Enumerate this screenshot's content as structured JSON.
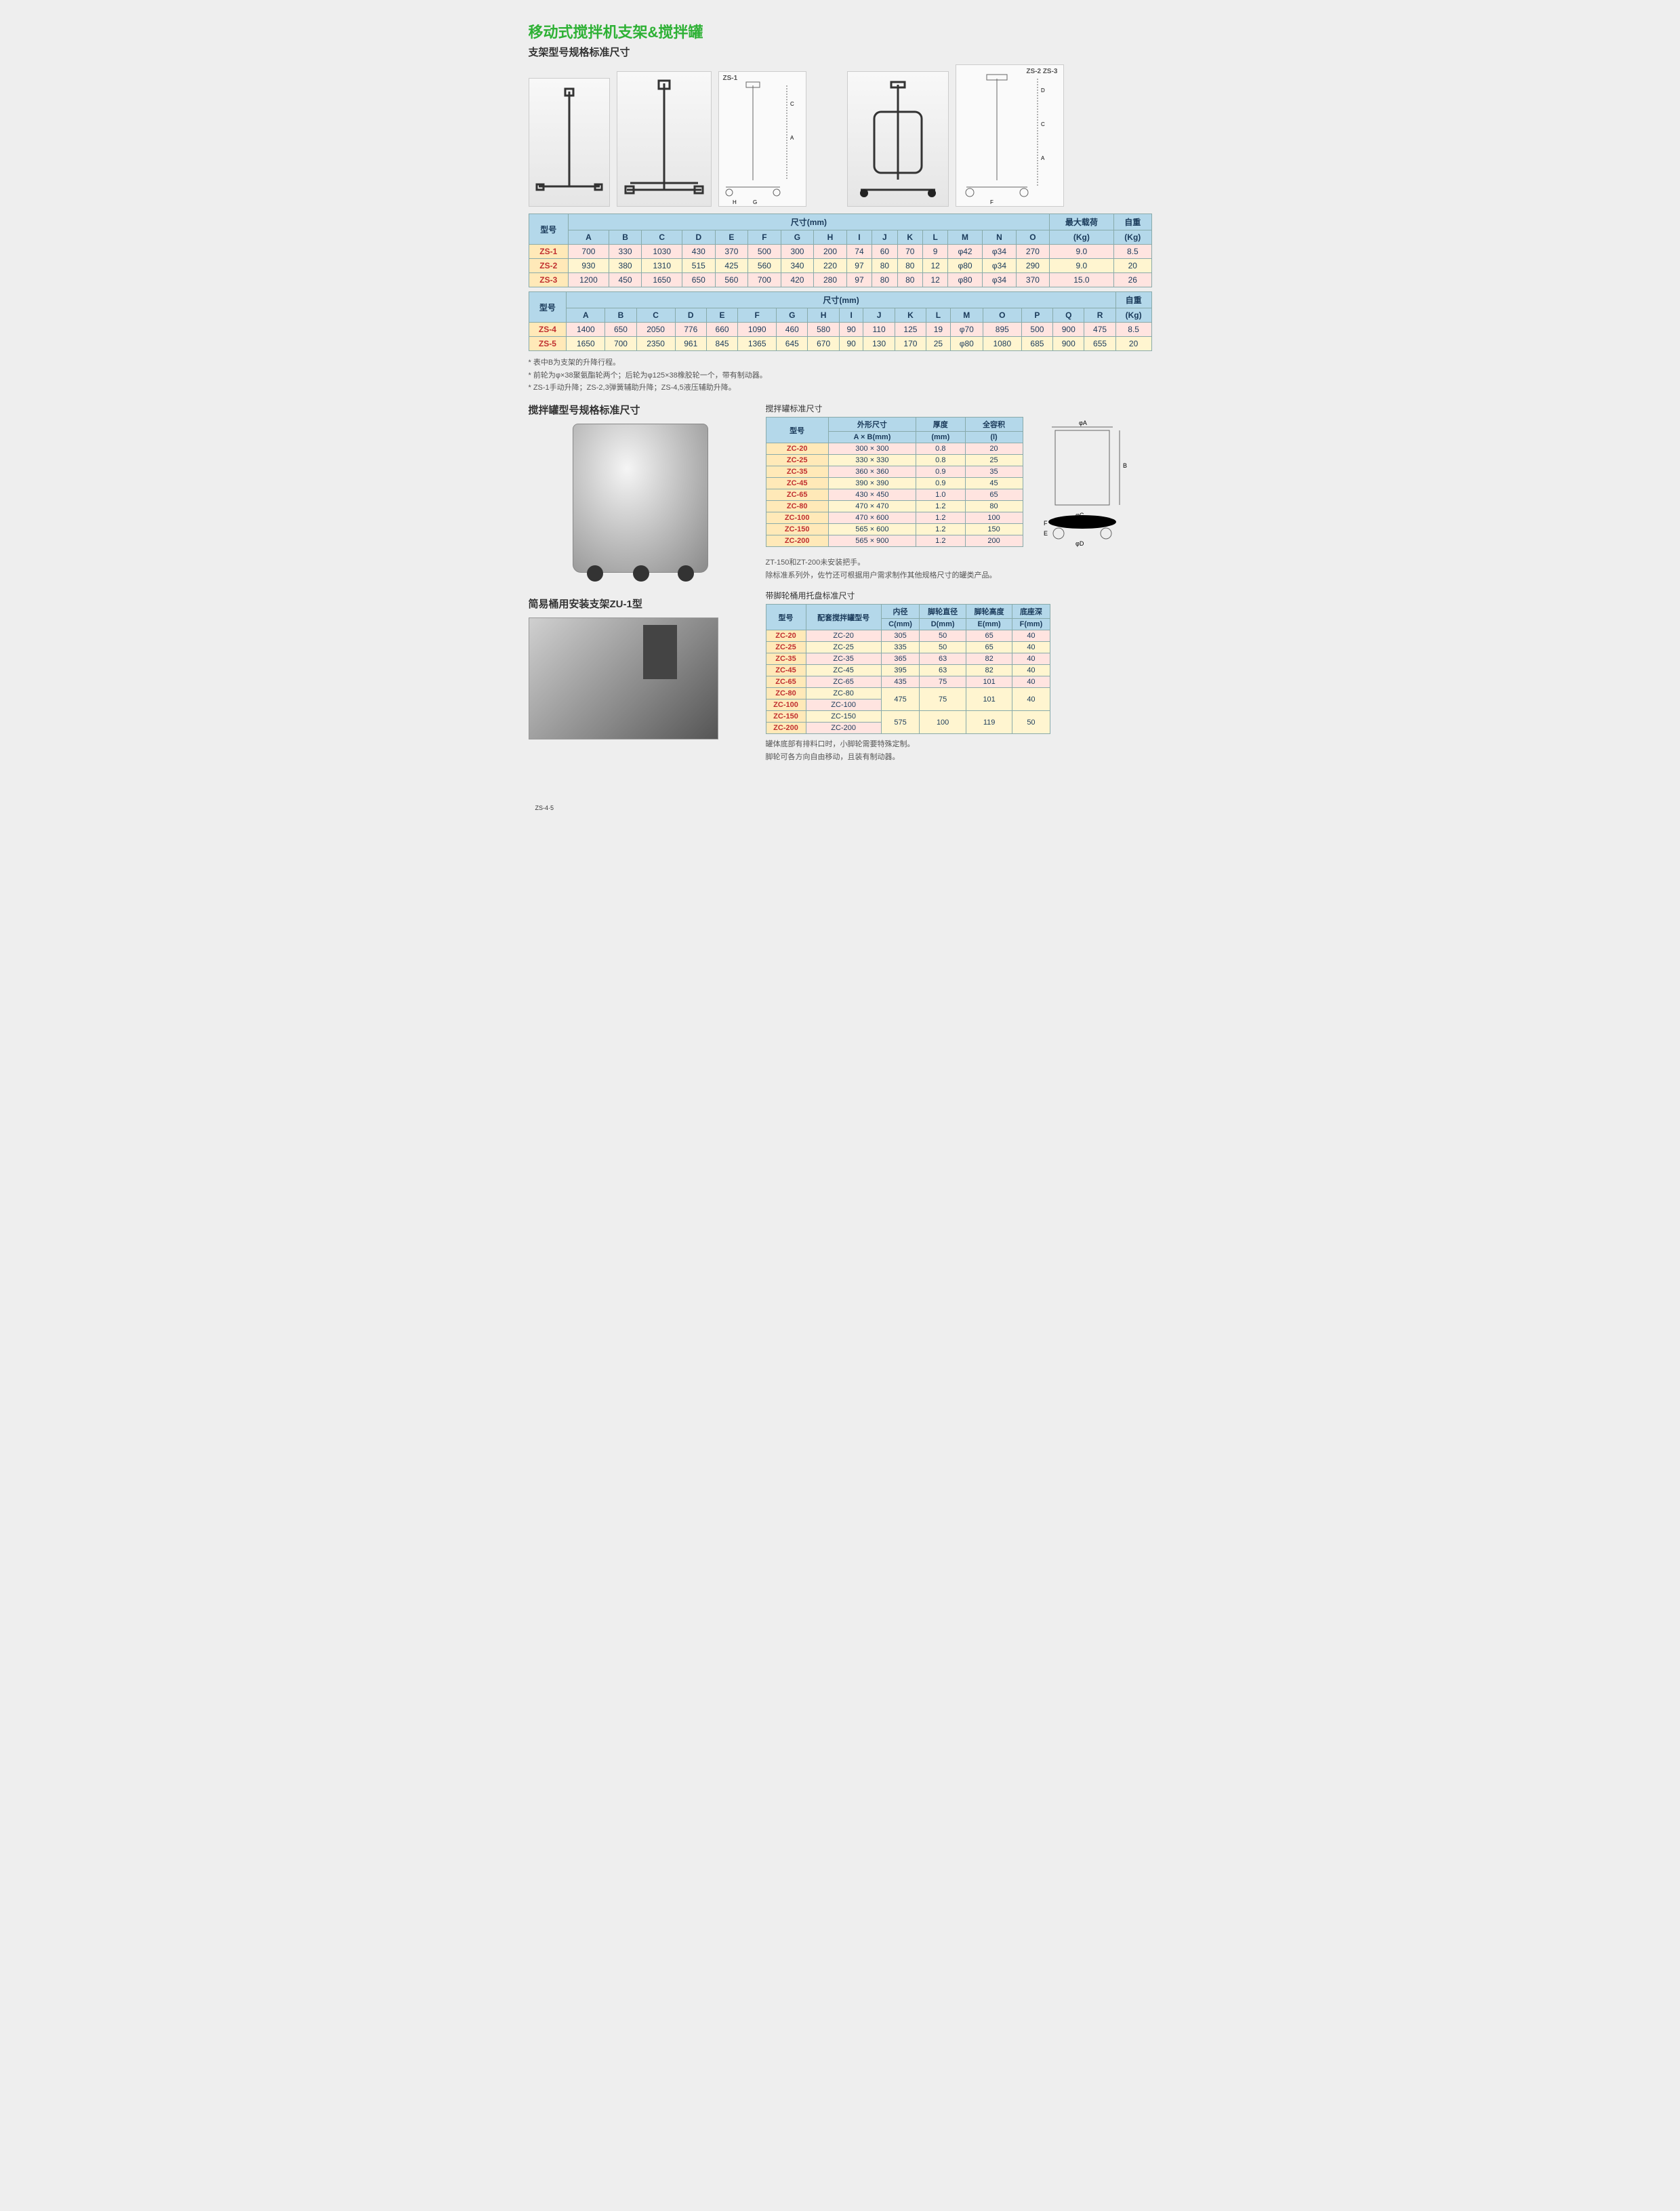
{
  "title": "移动式搅拌机支架&搅拌罐",
  "subtitle_stand": "支架型号规格标准尺寸",
  "diagram_labels": {
    "zs1": "ZS-1",
    "zs45": "ZS-4·5",
    "zs23": "ZS-2 ZS-3"
  },
  "table1": {
    "h_model": "型号",
    "h_dim": "尺寸(mm)",
    "h_load": "最大载荷",
    "h_weight": "自重",
    "h_kg": "(Kg)",
    "cols": [
      "A",
      "B",
      "C",
      "D",
      "E",
      "F",
      "G",
      "H",
      "I",
      "J",
      "K",
      "L",
      "M",
      "N",
      "O"
    ],
    "rows": [
      {
        "m": "ZS-1",
        "v": [
          "700",
          "330",
          "1030",
          "430",
          "370",
          "500",
          "300",
          "200",
          "74",
          "60",
          "70",
          "9",
          "φ42",
          "φ34",
          "270"
        ],
        "load": "9.0",
        "w": "8.5"
      },
      {
        "m": "ZS-2",
        "v": [
          "930",
          "380",
          "1310",
          "515",
          "425",
          "560",
          "340",
          "220",
          "97",
          "80",
          "80",
          "12",
          "φ80",
          "φ34",
          "290"
        ],
        "load": "9.0",
        "w": "20"
      },
      {
        "m": "ZS-3",
        "v": [
          "1200",
          "450",
          "1650",
          "650",
          "560",
          "700",
          "420",
          "280",
          "97",
          "80",
          "80",
          "12",
          "φ80",
          "φ34",
          "370"
        ],
        "load": "15.0",
        "w": "26"
      }
    ]
  },
  "table2": {
    "h_model": "型号",
    "h_dim": "尺寸(mm)",
    "h_weight": "自重",
    "h_kg": "(Kg)",
    "cols": [
      "A",
      "B",
      "C",
      "D",
      "E",
      "F",
      "G",
      "H",
      "I",
      "J",
      "K",
      "L",
      "M",
      "O",
      "P",
      "Q",
      "R"
    ],
    "rows": [
      {
        "m": "ZS-4",
        "v": [
          "1400",
          "650",
          "2050",
          "776",
          "660",
          "1090",
          "460",
          "580",
          "90",
          "110",
          "125",
          "19",
          "φ70",
          "895",
          "500",
          "900",
          "475"
        ],
        "w": "8.5"
      },
      {
        "m": "ZS-5",
        "v": [
          "1650",
          "700",
          "2350",
          "961",
          "845",
          "1365",
          "645",
          "670",
          "90",
          "130",
          "170",
          "25",
          "φ80",
          "1080",
          "685",
          "900",
          "655"
        ],
        "w": "20"
      }
    ]
  },
  "notes_stand": [
    "* 表中B为支架的升降行程。",
    "* 前轮为φ×38聚氨酯轮两个；后轮为φ125×38橡胶轮一个，带有制动器。",
    "* ZS-1手动升降；ZS-2,3弹簧辅助升降；ZS-4,5液压辅助升降。"
  ],
  "subtitle_tank": "搅拌罐型号规格标准尺寸",
  "tank_table_title": "搅拌罐标准尺寸",
  "tank_table": {
    "h_model": "型号",
    "h_outer": "外形尺寸",
    "h_ab": "A × B(mm)",
    "h_thick": "厚度",
    "h_mm": "(mm)",
    "h_vol": "全容积",
    "h_l": "(l)",
    "rows": [
      {
        "m": "ZC-20",
        "ab": "300 × 300",
        "t": "0.8",
        "v": "20"
      },
      {
        "m": "ZC-25",
        "ab": "330 × 330",
        "t": "0.8",
        "v": "25"
      },
      {
        "m": "ZC-35",
        "ab": "360 × 360",
        "t": "0.9",
        "v": "35"
      },
      {
        "m": "ZC-45",
        "ab": "390 × 390",
        "t": "0.9",
        "v": "45"
      },
      {
        "m": "ZC-65",
        "ab": "430 × 450",
        "t": "1.0",
        "v": "65"
      },
      {
        "m": "ZC-80",
        "ab": "470 × 470",
        "t": "1.2",
        "v": "80"
      },
      {
        "m": "ZC-100",
        "ab": "470 × 600",
        "t": "1.2",
        "v": "100"
      },
      {
        "m": "ZC-150",
        "ab": "565 × 600",
        "t": "1.2",
        "v": "150"
      },
      {
        "m": "ZC-200",
        "ab": "565 × 900",
        "t": "1.2",
        "v": "200"
      }
    ]
  },
  "tank_notes": [
    "ZT-150和ZT-200未安装把手。",
    "除标准系列外，佐竹还可根据用户需求制作其他规格尺寸的罐类产品。"
  ],
  "tray_title": "带脚轮桶用托盘标准尺寸",
  "subtitle_zu1": "简易桶用安装支架ZU-1型",
  "tray_table": {
    "h_model": "型号",
    "h_match": "配套搅拌罐型号",
    "h_inner": "内径",
    "h_c": "C(mm)",
    "h_wd": "脚轮直径",
    "h_d": "D(mm)",
    "h_wh": "脚轮高度",
    "h_e": "E(mm)",
    "h_base": "底座深",
    "h_f": "F(mm)",
    "rows": [
      {
        "m": "ZC-20",
        "t": "ZC-20",
        "c": "305",
        "d": "50",
        "e": "65",
        "f": "40"
      },
      {
        "m": "ZC-25",
        "t": "ZC-25",
        "c": "335",
        "d": "50",
        "e": "65",
        "f": "40"
      },
      {
        "m": "ZC-35",
        "t": "ZC-35",
        "c": "365",
        "d": "63",
        "e": "82",
        "f": "40"
      },
      {
        "m": "ZC-45",
        "t": "ZC-45",
        "c": "395",
        "d": "63",
        "e": "82",
        "f": "40"
      },
      {
        "m": "ZC-65",
        "t": "ZC-65",
        "c": "435",
        "d": "75",
        "e": "101",
        "f": "40"
      },
      {
        "m": "ZC-80",
        "t": "ZC-80",
        "c": "475",
        "d": "75",
        "e": "101",
        "f": "40",
        "span": 2
      },
      {
        "m": "ZC-100",
        "t": "ZC-100"
      },
      {
        "m": "ZC-150",
        "t": "ZC-150",
        "c": "575",
        "d": "100",
        "e": "119",
        "f": "50",
        "span": 2
      },
      {
        "m": "ZC-200",
        "t": "ZC-200"
      }
    ]
  },
  "tray_notes": [
    "罐体底部有排料口时，小脚轮需要特殊定制。",
    "脚轮可各方向自由移动，且装有制动器。"
  ],
  "diag_dim_labels": [
    "φA",
    "B",
    "φC",
    "φD",
    "E",
    "F"
  ]
}
